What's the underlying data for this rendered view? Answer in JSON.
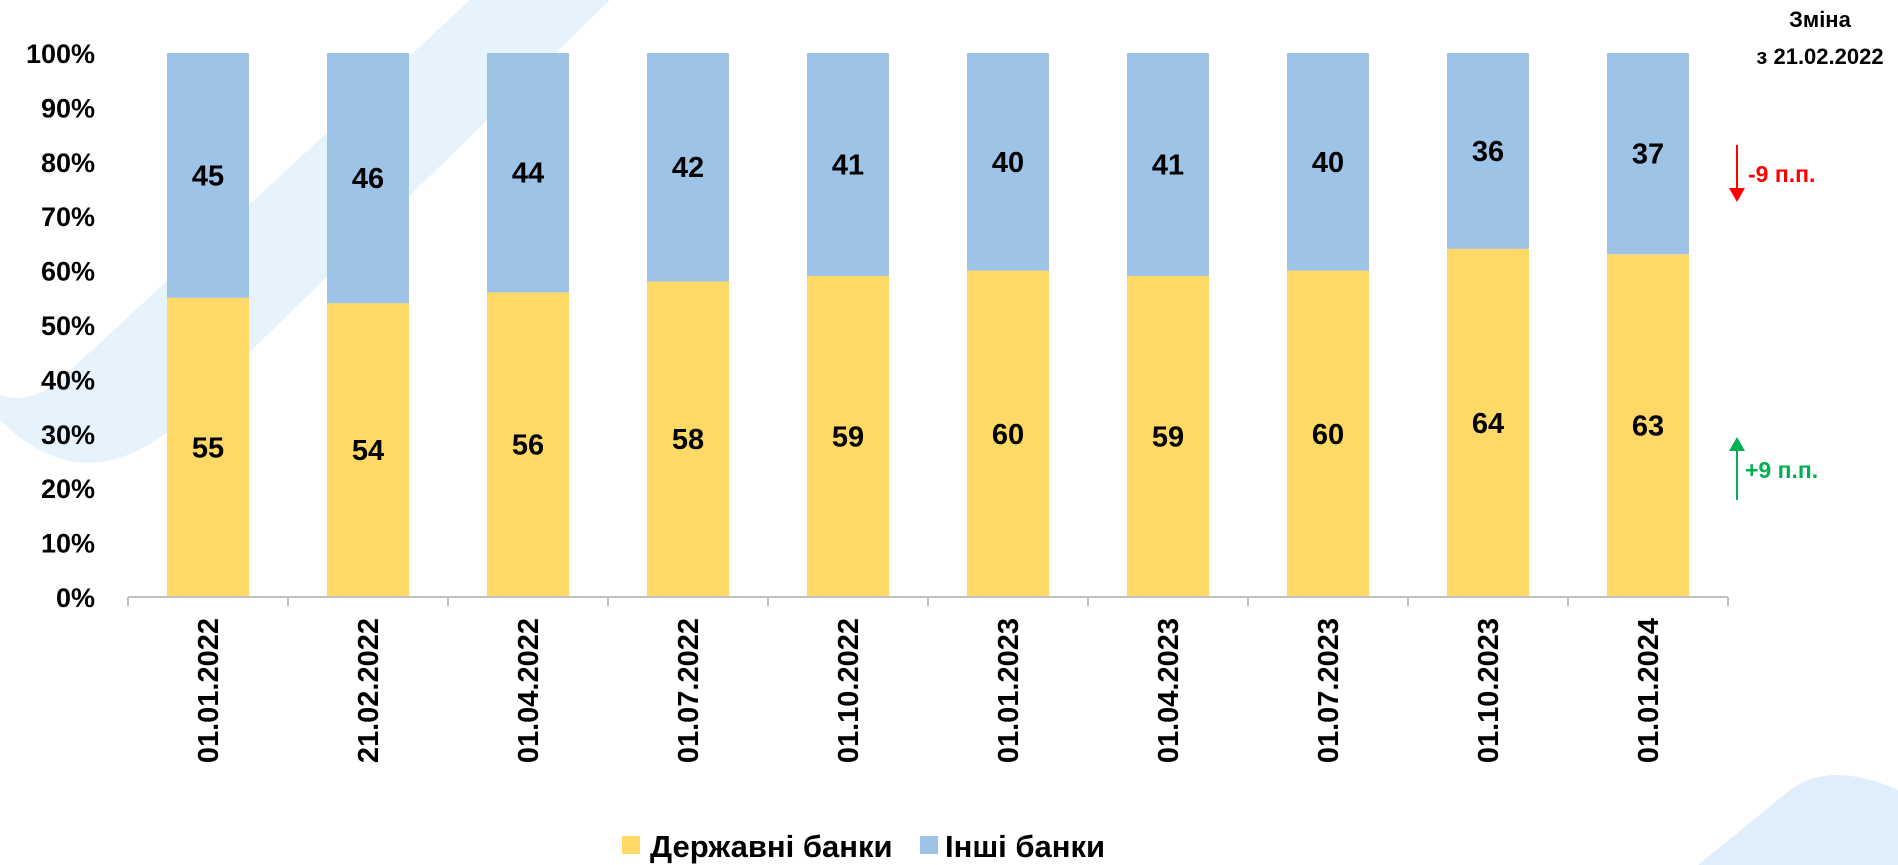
{
  "chart_data": {
    "type": "bar",
    "stacked": true,
    "categories": [
      "01.01.2022",
      "21.02.2022",
      "01.04.2022",
      "01.07.2022",
      "01.10.2022",
      "01.01.2023",
      "01.04.2023",
      "01.07.2023",
      "01.10.2023",
      "01.01.2024"
    ],
    "series": [
      {
        "name": "Державні банки",
        "color": "#FFD966",
        "values": [
          55,
          54,
          56,
          58,
          59,
          60,
          59,
          60,
          64,
          63
        ]
      },
      {
        "name": "Інші банки",
        "color": "#9DC3E6",
        "values": [
          45,
          46,
          44,
          42,
          41,
          40,
          41,
          40,
          36,
          37
        ]
      }
    ],
    "ylim": [
      0,
      100
    ],
    "yticks": [
      "0%",
      "10%",
      "20%",
      "30%",
      "40%",
      "50%",
      "60%",
      "70%",
      "80%",
      "90%",
      "100%"
    ],
    "grid": false,
    "legend_position": "bottom",
    "annotations": {
      "change_title_line1": "Зміна",
      "change_title_line2": "з 21.02.2022",
      "change_other": "-9 п.п.",
      "change_state": "+9 п.п.",
      "down_color": "#ff0000",
      "up_color": "#00b050"
    }
  }
}
